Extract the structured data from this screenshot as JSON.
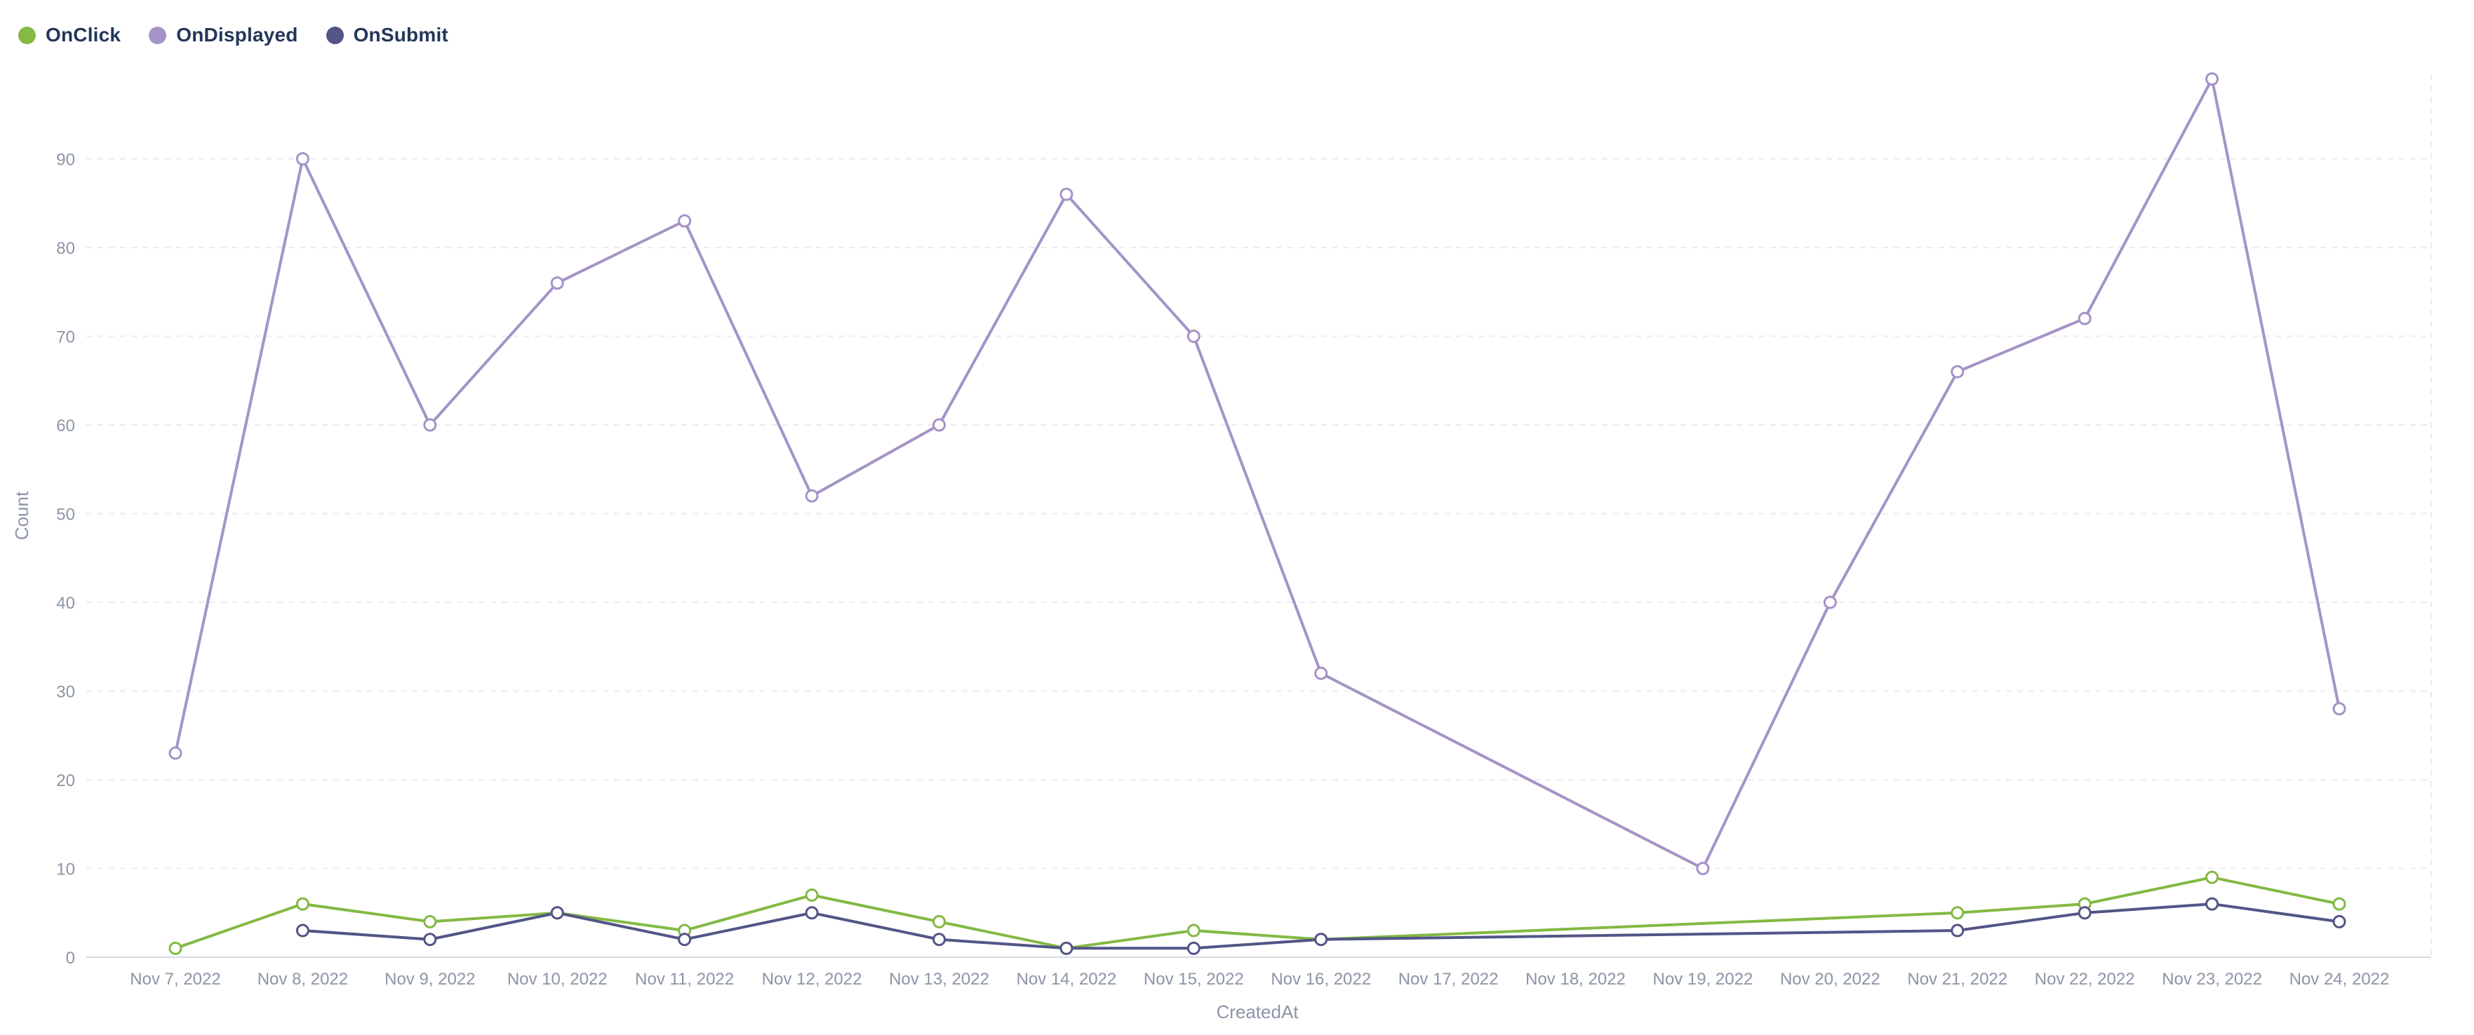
{
  "legend": {
    "items": [
      {
        "label": "OnClick",
        "color": "#83b944"
      },
      {
        "label": "OnDisplayed",
        "color": "#a593c7"
      },
      {
        "label": "OnSubmit",
        "color": "#525586"
      }
    ]
  },
  "chart_data": {
    "type": "line",
    "title": "",
    "xlabel": "CreatedAt",
    "ylabel": "Count",
    "ylim": [
      0,
      100
    ],
    "yticks": [
      0,
      10,
      20,
      30,
      40,
      50,
      60,
      70,
      80,
      90
    ],
    "grid": "horizontal-dashed",
    "legend_position": "top-left",
    "marker": "open-circle",
    "categories": [
      "Nov 7, 2022",
      "Nov 8, 2022",
      "Nov 9, 2022",
      "Nov 10, 2022",
      "Nov 11, 2022",
      "Nov 12, 2022",
      "Nov 13, 2022",
      "Nov 14, 2022",
      "Nov 15, 2022",
      "Nov 16, 2022",
      "Nov 17, 2022",
      "Nov 18, 2022",
      "Nov 19, 2022",
      "Nov 20, 2022",
      "Nov 21, 2022",
      "Nov 22, 2022",
      "Nov 23, 2022",
      "Nov 24, 2022"
    ],
    "series": [
      {
        "name": "OnClick",
        "color": "#83b944",
        "values": [
          1,
          6,
          4,
          5,
          3,
          7,
          4,
          1,
          3,
          2,
          null,
          null,
          null,
          null,
          5,
          6,
          9,
          6
        ]
      },
      {
        "name": "OnDisplayed",
        "color": "#a593c7",
        "values": [
          23,
          90,
          60,
          76,
          83,
          52,
          60,
          86,
          70,
          32,
          null,
          null,
          10,
          40,
          66,
          72,
          99,
          28
        ]
      },
      {
        "name": "OnSubmit",
        "color": "#525586",
        "values": [
          null,
          3,
          2,
          5,
          2,
          5,
          2,
          1,
          1,
          2,
          null,
          null,
          null,
          null,
          3,
          5,
          6,
          4
        ]
      }
    ]
  }
}
